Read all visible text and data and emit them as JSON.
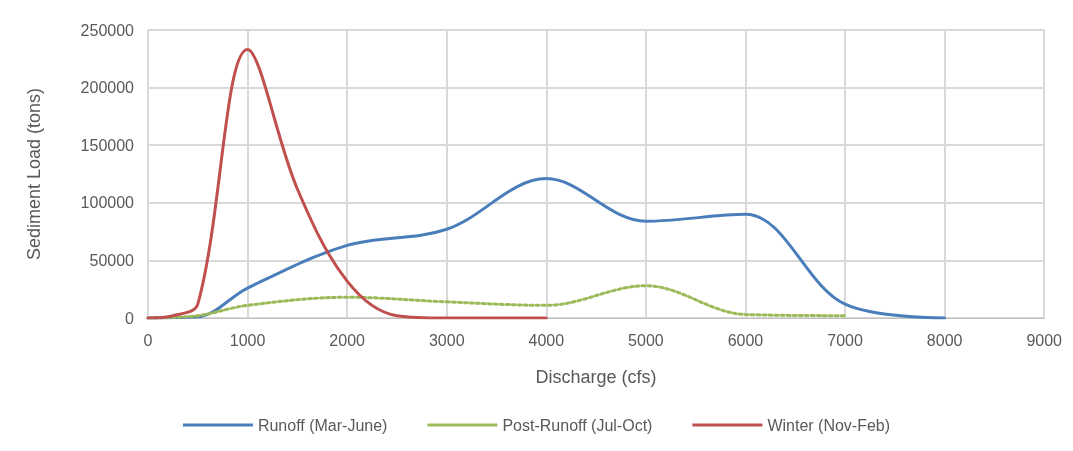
{
  "chart_data": {
    "type": "line",
    "xlabel": "Discharge (cfs)",
    "ylabel": "Sediment Load (tons)",
    "xlim": [
      0,
      9000
    ],
    "xticks": [
      0,
      1000,
      2000,
      3000,
      4000,
      5000,
      6000,
      7000,
      8000,
      9000
    ],
    "ylim": [
      0,
      250000
    ],
    "yticks": [
      0,
      50000,
      100000,
      150000,
      200000,
      250000
    ],
    "grid": true,
    "legend": "bottom",
    "marker": "none",
    "series": [
      {
        "name": "Runoff (Mar-June)",
        "color": "#4a7ebb",
        "line_style": "solid",
        "x": [
          0,
          500,
          1000,
          2000,
          3000,
          4000,
          5000,
          6000,
          7000,
          8000
        ],
        "values": [
          0,
          1000,
          26000,
          63000,
          77000,
          121000,
          84000,
          90000,
          12000,
          0
        ]
      },
      {
        "name": "Post-Runoff (Jul-Oct)",
        "color": "#9bbb59",
        "line_style": "dotted",
        "x": [
          0,
          500,
          1000,
          2000,
          3000,
          4000,
          5000,
          6000,
          7000
        ],
        "values": [
          0,
          2000,
          11000,
          18000,
          14000,
          11000,
          28000,
          3000,
          2000
        ]
      },
      {
        "name": "Winter (Nov-Feb)",
        "color": "#c0504d",
        "line_style": "solid",
        "x": [
          0,
          250,
          500,
          1000,
          1500,
          2000,
          2500,
          3000,
          4000
        ],
        "values": [
          0,
          2000,
          12000,
          233000,
          112000,
          32000,
          2000,
          0,
          0
        ]
      }
    ]
  }
}
